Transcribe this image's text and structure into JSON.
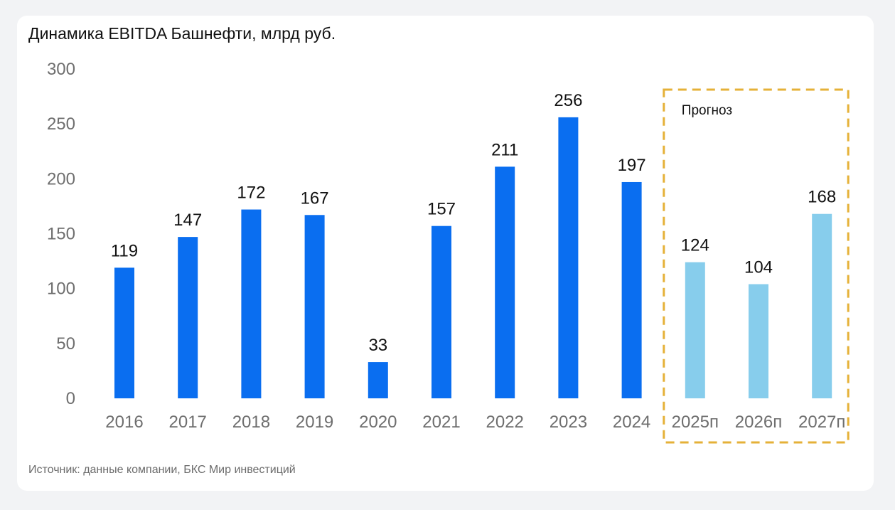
{
  "chart_data": {
    "type": "bar",
    "title": "Динамика EBITDA Башнефти, млрд руб.",
    "xlabel": "",
    "ylabel": "",
    "ylim": [
      0,
      300
    ],
    "yticks": [
      0,
      50,
      100,
      150,
      200,
      250,
      300
    ],
    "categories": [
      "2016",
      "2017",
      "2018",
      "2019",
      "2020",
      "2021",
      "2022",
      "2023",
      "2024",
      "2025п",
      "2026п",
      "2027п"
    ],
    "values": [
      119,
      147,
      172,
      167,
      33,
      157,
      211,
      256,
      197,
      124,
      104,
      168
    ],
    "forecast": [
      false,
      false,
      false,
      false,
      false,
      false,
      false,
      false,
      false,
      true,
      true,
      true
    ],
    "grid": false,
    "annotation": "Прогноз"
  },
  "colors": {
    "actual": "#0a6ef0",
    "forecast": "#87cdec",
    "forecast_box": "#e5b138"
  },
  "source": "Источник: данные компании, БКС Мир инвестиций"
}
